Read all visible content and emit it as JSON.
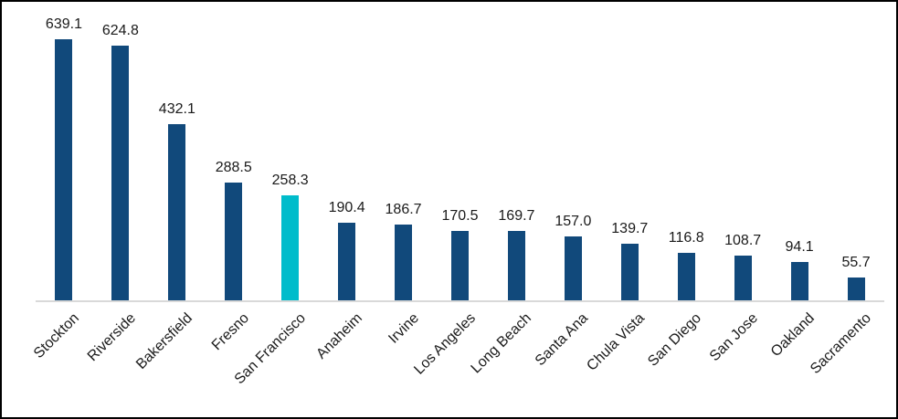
{
  "chart_data": {
    "type": "bar",
    "title": "",
    "xlabel": "",
    "ylabel": "",
    "categories": [
      "Stockton",
      "Riverside",
      "Bakersfield",
      "Fresno",
      "San Francisco",
      "Anaheim",
      "Irvine",
      "Los Angeles",
      "Long Beach",
      "Santa Ana",
      "Chula Vista",
      "San Diego",
      "San Jose",
      "Oakland",
      "Sacramento"
    ],
    "values": [
      639.1,
      624.8,
      432.1,
      288.5,
      258.3,
      190.4,
      186.7,
      170.5,
      169.7,
      157.0,
      139.7,
      116.8,
      108.7,
      94.1,
      55.7
    ],
    "data_labels": [
      "639.1",
      "624.8",
      "432.1",
      "288.5",
      "258.3",
      "190.4",
      "186.7",
      "170.5",
      "169.7",
      "157.0",
      "139.7",
      "116.8",
      "108.7",
      "94.1",
      "55.7"
    ],
    "highlighted_category": "San Francisco",
    "highlight_index": 4,
    "ylim": [
      0,
      700
    ],
    "grid": false,
    "legend": false,
    "x_label_rotation_deg": 45,
    "colors": {
      "bar": "#11497B",
      "highlight": "#00BCCB",
      "axis_line": "#D9D9D9",
      "label_text": "#1a1a1a",
      "frame_border": "#000000",
      "background": "#FFFFFF"
    }
  }
}
